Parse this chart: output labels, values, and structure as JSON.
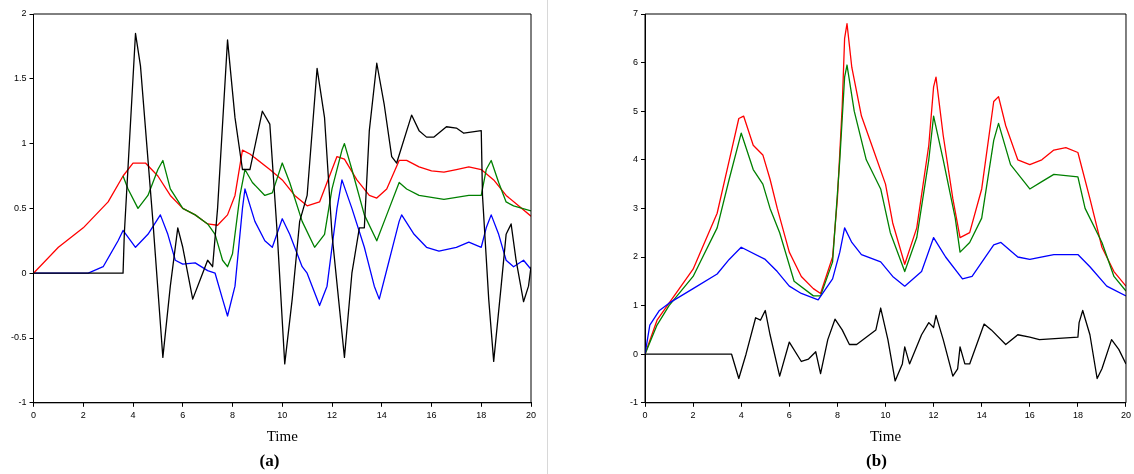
{
  "chart_data": [
    {
      "type": "line",
      "title": "(a)",
      "xlabel": "Time",
      "xlim": [
        0,
        20
      ],
      "xticks": [
        0,
        2,
        4,
        6,
        8,
        10,
        12,
        14,
        16,
        18,
        20
      ],
      "ylim": [
        -1,
        2
      ],
      "yticks": [
        -1,
        -0.5,
        0,
        0.5,
        1,
        1.5,
        2
      ],
      "grid": false,
      "legend": false,
      "series": [
        {
          "color": "#000000",
          "x": [
            0,
            3.6,
            3.65,
            4.1,
            4.3,
            4.8,
            5.2,
            5.5,
            5.8,
            6.0,
            6.4,
            6.7,
            7.0,
            7.2,
            7.4,
            7.8,
            8.1,
            8.4,
            8.7,
            9.2,
            9.5,
            9.8,
            10.1,
            10.4,
            10.7,
            11.0,
            11.4,
            11.7,
            12.0,
            12.5,
            12.8,
            13.1,
            13.3,
            13.5,
            13.8,
            14.1,
            14.4,
            14.6,
            15.2,
            15.5,
            15.8,
            16.1,
            16.6,
            17.0,
            17.3,
            18.0,
            18.05,
            18.3,
            18.5,
            18.8,
            19.0,
            19.2,
            19.4,
            19.7,
            19.9,
            20
          ],
          "values": [
            0,
            0,
            0.3,
            1.85,
            1.6,
            0.4,
            -0.65,
            -0.1,
            0.35,
            0.2,
            -0.2,
            -0.05,
            0.1,
            0.05,
            0.5,
            1.8,
            1.2,
            0.8,
            0.8,
            1.25,
            1.15,
            0.3,
            -0.7,
            -0.2,
            0.4,
            0.6,
            1.58,
            1.2,
            0.3,
            -0.65,
            0,
            0.35,
            0.35,
            1.1,
            1.62,
            1.3,
            0.9,
            0.85,
            1.22,
            1.1,
            1.05,
            1.05,
            1.13,
            1.12,
            1.08,
            1.1,
            0.6,
            -0.2,
            -0.68,
            -0.1,
            0.3,
            0.38,
            0.1,
            -0.22,
            -0.1,
            0.05
          ]
        },
        {
          "color": "#008000",
          "x": [
            3.6,
            3.8,
            4.2,
            4.6,
            5.0,
            5.2,
            5.5,
            6,
            6.5,
            7,
            7.3,
            7.6,
            7.8,
            8.0,
            8.3,
            8.5,
            8.8,
            9.3,
            9.6,
            10,
            10.3,
            10.8,
            11.3,
            11.7,
            12.0,
            12.4,
            12.5,
            12.8,
            13.3,
            13.8,
            14.2,
            14.7,
            15,
            15.5,
            16.5,
            17.5,
            18,
            18.2,
            18.4,
            18.7,
            19,
            19.3,
            20
          ],
          "values": [
            0.75,
            0.65,
            0.5,
            0.6,
            0.8,
            0.87,
            0.65,
            0.5,
            0.45,
            0.38,
            0.3,
            0.1,
            0.05,
            0.15,
            0.6,
            0.8,
            0.7,
            0.6,
            0.62,
            0.85,
            0.7,
            0.4,
            0.2,
            0.3,
            0.65,
            0.95,
            1.0,
            0.8,
            0.45,
            0.25,
            0.45,
            0.7,
            0.65,
            0.6,
            0.57,
            0.6,
            0.6,
            0.8,
            0.87,
            0.7,
            0.55,
            0.52,
            0.48
          ]
        },
        {
          "color": "#ff0000",
          "x": [
            0,
            1,
            2,
            3,
            3.6,
            4,
            4.5,
            5,
            5.5,
            6,
            6.5,
            7,
            7.4,
            7.8,
            8.1,
            8.4,
            8.7,
            9.5,
            10,
            10.5,
            11,
            11.5,
            12,
            12.2,
            12.5,
            13,
            13.5,
            13.8,
            14.2,
            14.7,
            15,
            15.5,
            16,
            16.5,
            17,
            17.5,
            18,
            18.5,
            19,
            19.5,
            20
          ],
          "values": [
            0,
            0.2,
            0.35,
            0.55,
            0.75,
            0.85,
            0.85,
            0.75,
            0.6,
            0.5,
            0.45,
            0.38,
            0.37,
            0.45,
            0.6,
            0.95,
            0.92,
            0.8,
            0.72,
            0.6,
            0.52,
            0.55,
            0.8,
            0.9,
            0.88,
            0.72,
            0.6,
            0.58,
            0.65,
            0.87,
            0.87,
            0.82,
            0.79,
            0.78,
            0.8,
            0.82,
            0.8,
            0.72,
            0.6,
            0.52,
            0.44
          ]
        },
        {
          "color": "#0000ff",
          "x": [
            0,
            2.2,
            2.8,
            3.4,
            3.6,
            4.1,
            4.6,
            5.1,
            5.4,
            5.7,
            6,
            6.5,
            7,
            7.3,
            7.6,
            7.8,
            8.1,
            8.4,
            8.5,
            8.9,
            9.3,
            9.6,
            10,
            10.3,
            10.8,
            11,
            11.5,
            11.8,
            12.2,
            12.4,
            12.8,
            13.3,
            13.7,
            13.9,
            14.3,
            14.7,
            14.8,
            15.3,
            15.8,
            16.3,
            17,
            17.5,
            18,
            18.2,
            18.4,
            18.7,
            19,
            19.3,
            19.7,
            20
          ],
          "values": [
            0,
            0,
            0.05,
            0.25,
            0.33,
            0.2,
            0.3,
            0.45,
            0.3,
            0.1,
            0.07,
            0.08,
            0.02,
            0,
            -0.2,
            -0.33,
            -0.1,
            0.5,
            0.65,
            0.4,
            0.25,
            0.2,
            0.42,
            0.3,
            0.05,
            0,
            -0.25,
            -0.1,
            0.5,
            0.72,
            0.5,
            0.2,
            -0.1,
            -0.2,
            0.1,
            0.4,
            0.45,
            0.3,
            0.2,
            0.17,
            0.2,
            0.24,
            0.2,
            0.35,
            0.45,
            0.3,
            0.1,
            0.05,
            0.1,
            0.03
          ]
        }
      ]
    },
    {
      "type": "line",
      "title": "(b)",
      "xlabel": "Time",
      "xlim": [
        0,
        20
      ],
      "xticks": [
        0,
        2,
        4,
        6,
        8,
        10,
        12,
        14,
        16,
        18,
        20
      ],
      "ylim": [
        -1,
        7
      ],
      "yticks": [
        -1,
        0,
        1,
        2,
        3,
        4,
        5,
        6,
        7
      ],
      "grid": false,
      "legend": false,
      "series": [
        {
          "color": "#000000",
          "x": [
            0,
            3.6,
            3.9,
            4.2,
            4.6,
            4.8,
            5.0,
            5.2,
            5.6,
            6.0,
            6.5,
            6.8,
            7.1,
            7.3,
            7.6,
            7.9,
            8.2,
            8.5,
            8.8,
            9.2,
            9.6,
            9.8,
            10.1,
            10.4,
            10.7,
            10.8,
            11,
            11.5,
            11.8,
            12,
            12.1,
            12.4,
            12.8,
            13,
            13.1,
            13.3,
            13.5,
            14.1,
            14.4,
            15,
            15.5,
            16,
            16.4,
            18,
            18.05,
            18.2,
            18.5,
            18.8,
            19,
            19.4,
            19.7,
            20
          ],
          "values": [
            0,
            0,
            -0.5,
            0,
            0.75,
            0.7,
            0.9,
            0.4,
            -0.45,
            0.25,
            -0.15,
            -0.1,
            0.05,
            -0.4,
            0.3,
            0.72,
            0.5,
            0.2,
            0.2,
            0.35,
            0.5,
            0.95,
            0.3,
            -0.55,
            -0.2,
            0.15,
            -0.2,
            0.4,
            0.65,
            0.55,
            0.8,
            0.3,
            -0.45,
            -0.3,
            0.15,
            -0.2,
            -0.2,
            0.62,
            0.5,
            0.2,
            0.4,
            0.35,
            0.3,
            0.35,
            0.65,
            0.9,
            0.4,
            -0.5,
            -0.3,
            0.3,
            0.1,
            -0.2
          ]
        },
        {
          "color": "#0000ff",
          "x": [
            0,
            0.2,
            0.6,
            1,
            2,
            3,
            3.5,
            4,
            5,
            5.5,
            6,
            6.5,
            7.2,
            7.8,
            8.1,
            8.3,
            8.6,
            9,
            9.8,
            10.3,
            10.8,
            11.5,
            12,
            12.5,
            13.2,
            13.6,
            14.5,
            14.8,
            15.5,
            16,
            17,
            18,
            18.5,
            19.2,
            20
          ],
          "values": [
            0,
            0.6,
            0.9,
            1.05,
            1.35,
            1.65,
            1.95,
            2.2,
            1.95,
            1.7,
            1.4,
            1.25,
            1.12,
            1.55,
            2.1,
            2.6,
            2.3,
            2.05,
            1.9,
            1.6,
            1.4,
            1.7,
            2.4,
            2.0,
            1.55,
            1.6,
            2.25,
            2.3,
            2.0,
            1.95,
            2.05,
            2.05,
            1.8,
            1.4,
            1.2
          ]
        },
        {
          "color": "#008000",
          "x": [
            0,
            0.5,
            1,
            2,
            3,
            3.5,
            4,
            4.5,
            4.9,
            5.2,
            5.6,
            6.2,
            7,
            7.3,
            7.8,
            8.1,
            8.3,
            8.4,
            8.7,
            9.2,
            9.8,
            10.2,
            10.8,
            11.3,
            11.8,
            12,
            12.4,
            12.9,
            13.1,
            13.5,
            14,
            14.5,
            14.7,
            15.2,
            16,
            16.5,
            17,
            18,
            18.3,
            19,
            19.5,
            20
          ],
          "values": [
            0,
            0.6,
            1.0,
            1.6,
            2.6,
            3.6,
            4.55,
            3.8,
            3.5,
            3.0,
            2.5,
            1.5,
            1.2,
            1.2,
            1.9,
            4.0,
            5.7,
            5.95,
            5.0,
            4.0,
            3.4,
            2.5,
            1.7,
            2.4,
            4.0,
            4.9,
            4.0,
            2.8,
            2.1,
            2.3,
            2.8,
            4.4,
            4.75,
            3.9,
            3.4,
            3.55,
            3.7,
            3.65,
            3.0,
            2.3,
            1.6,
            1.3
          ]
        },
        {
          "color": "#ff0000",
          "x": [
            0,
            0.5,
            1,
            2,
            3,
            3.6,
            3.9,
            4.1,
            4.5,
            4.9,
            5.2,
            5.5,
            6,
            6.5,
            7,
            7.3,
            7.8,
            8,
            8.2,
            8.3,
            8.4,
            8.6,
            9,
            9.5,
            10,
            10.3,
            10.8,
            11.3,
            11.8,
            12,
            12.1,
            12.4,
            12.8,
            13.1,
            13.5,
            14,
            14.5,
            14.7,
            15,
            15.5,
            16,
            16.5,
            17,
            17.5,
            18,
            18.5,
            19,
            19.5,
            20
          ],
          "values": [
            0,
            0.7,
            1.05,
            1.75,
            2.9,
            4.2,
            4.85,
            4.9,
            4.3,
            4.1,
            3.6,
            3.0,
            2.1,
            1.6,
            1.35,
            1.25,
            2.0,
            3.2,
            5.1,
            6.5,
            6.8,
            5.9,
            4.9,
            4.2,
            3.5,
            2.7,
            1.85,
            2.6,
            4.3,
            5.5,
            5.7,
            4.5,
            3.2,
            2.4,
            2.5,
            3.4,
            5.2,
            5.3,
            4.7,
            4.0,
            3.9,
            4.0,
            4.2,
            4.25,
            4.15,
            3.2,
            2.2,
            1.7,
            1.4
          ]
        }
      ]
    }
  ]
}
